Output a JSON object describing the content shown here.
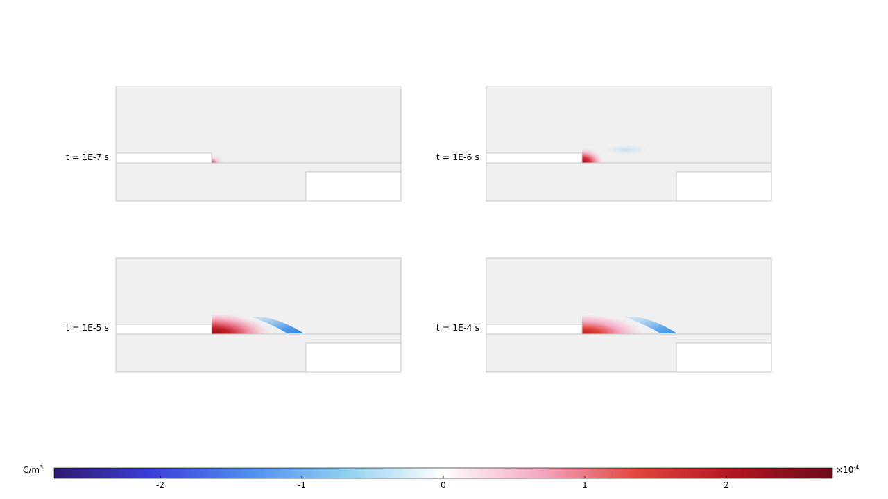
{
  "panels": [
    {
      "label": "t = 1E-7 s",
      "stage": 0
    },
    {
      "label": "t = 1E-6 s",
      "stage": 1
    },
    {
      "label": "t = 1E-5 s",
      "stage": 2
    },
    {
      "label": "t = 1E-4 s",
      "stage": 3
    }
  ],
  "colorbar": {
    "unit": "C/m",
    "unit_exponent": "3",
    "multiplier": "×10",
    "multiplier_exponent": "-4",
    "ticks": [
      "-2",
      "-1",
      "0",
      "1",
      "2"
    ],
    "range": [
      -2.75,
      2.75
    ],
    "colors": [
      "#2e1a6e",
      "#3b3fd6",
      "#4f8ef0",
      "#8fd0f2",
      "#ffffff",
      "#f4a6c4",
      "#e0453a",
      "#b01620",
      "#6b0b1b"
    ]
  },
  "colors": {
    "domain_fill": "#f0f0f0",
    "domain_edge": "#c8c8c8",
    "positive_peak": "#8a0d1a",
    "negative_peak": "#3f9de8"
  }
}
